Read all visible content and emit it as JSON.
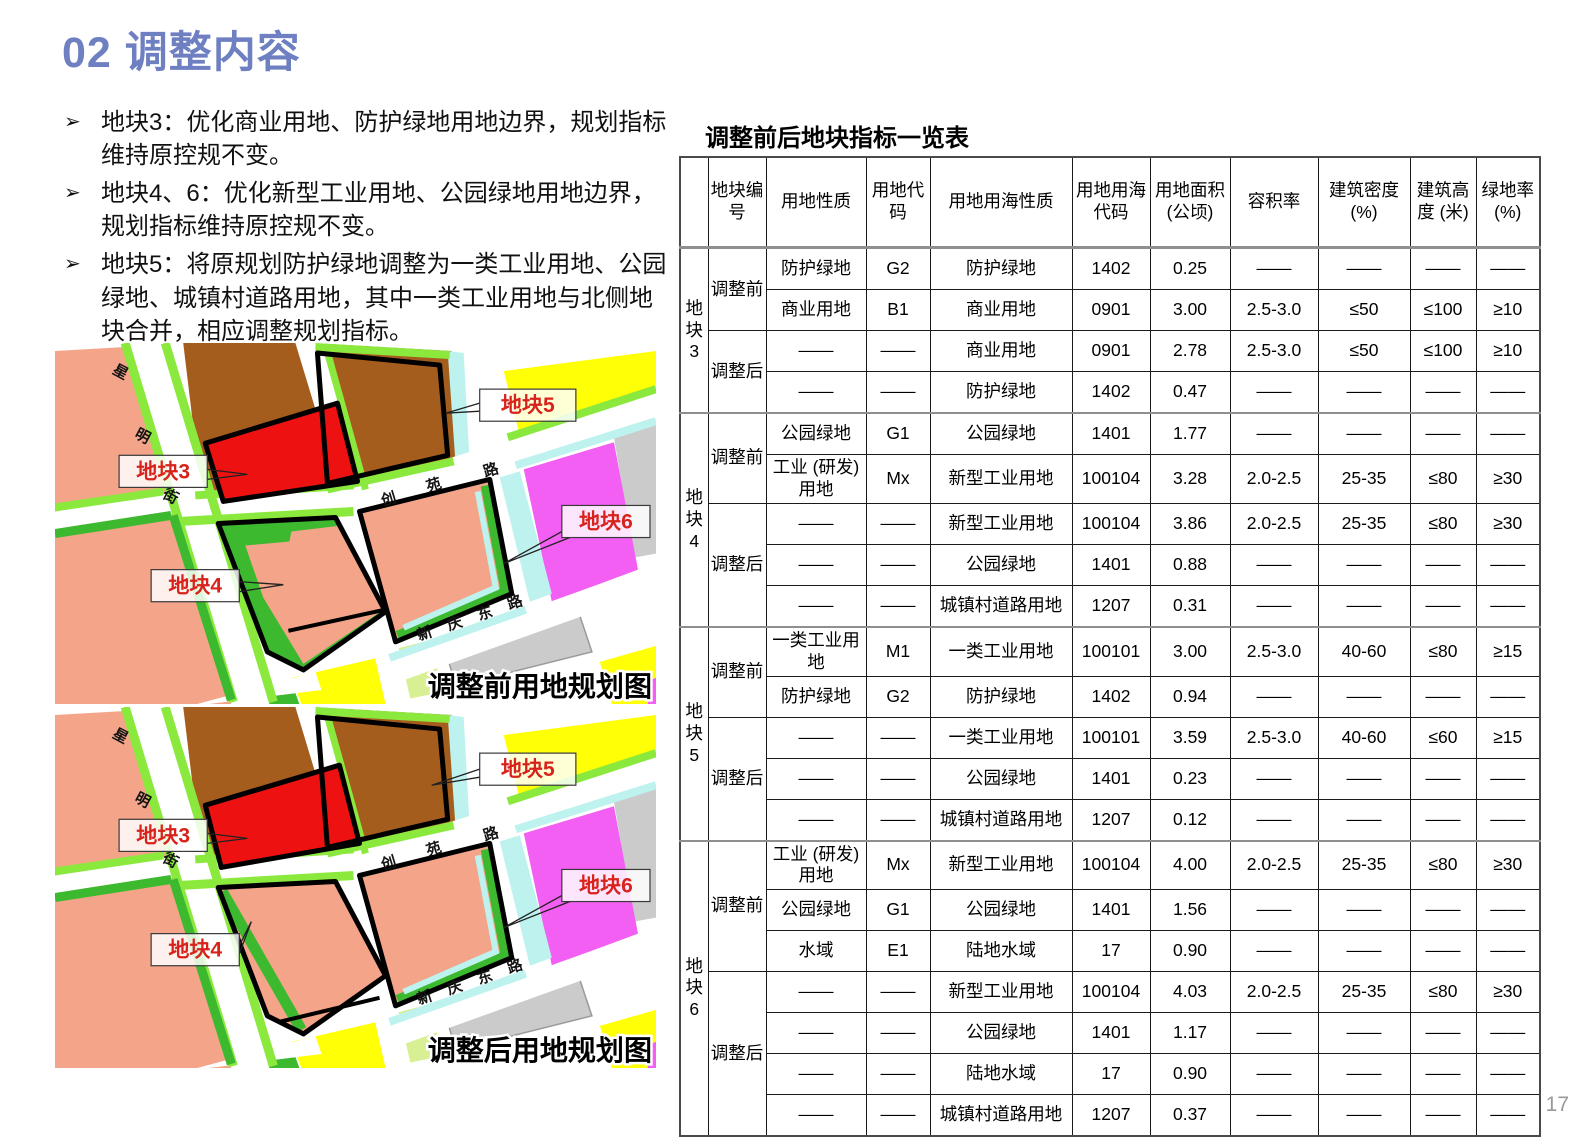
{
  "page": {
    "title": "02 调整内容",
    "number": "17"
  },
  "bullets": [
    {
      "marker": "➢",
      "text": "地块3：优化商业用地、防护绿地用地边界，规划指标维持原控规不变。"
    },
    {
      "marker": "➢",
      "text": "地块4、6：优化新型工业用地、公园绿地用地边界，规划指标维持原控规不变。"
    },
    {
      "marker": "➢",
      "text": "地块5：将原规划防护绿地调整为一类工业用地、公园绿地、城镇村道路用地，其中一类工业用地与北侧地块合并，相应调整规划指标。"
    }
  ],
  "maps": {
    "before": {
      "caption": "调整前用地规划图"
    },
    "after": {
      "caption": "调整后用地规划图"
    },
    "labels": {
      "p3": "地块3",
      "p4": "地块4",
      "p5": "地块5",
      "p6": "地块6"
    },
    "streets": {
      "xingming": [
        "星",
        "明",
        "街"
      ],
      "chuangyuan": [
        "创",
        "苑",
        "路"
      ],
      "xinqingdong": [
        "新",
        "庆",
        "东",
        "路"
      ]
    },
    "legend_colors": {
      "commercial_brown": "#A55D1E",
      "residential_salmon": "#F4A489",
      "highlight_red": "#EE1111",
      "green_light": "#8BE93E",
      "green_mid": "#3CB92E",
      "yellow": "#FFFF05",
      "magenta": "#F25FF2",
      "cyan": "#BDF2EF",
      "pale_yellow_green": "#D8F093",
      "gray": "#CBCBCB",
      "label_red": "#D8231C",
      "title_blue": "#6F80C2"
    }
  },
  "table": {
    "title": "调整前后地块指标一览表",
    "headers": [
      "地块编号",
      "用地性质",
      "用地代码",
      "用地用海性质",
      "用地用海代码",
      "用地面积 (公顷)",
      "容积率",
      "建筑密度 (%)",
      "建筑高度 (米)",
      "绿地率 (%)"
    ],
    "groups": [
      {
        "plot": "地块3",
        "sections": [
          {
            "phase": "调整前",
            "rows": [
              [
                "防护绿地",
                "G2",
                "防护绿地",
                "1402",
                "0.25",
                "——",
                "——",
                "——",
                "——"
              ],
              [
                "商业用地",
                "B1",
                "商业用地",
                "0901",
                "3.00",
                "2.5-3.0",
                "≤50",
                "≤100",
                "≥10"
              ]
            ]
          },
          {
            "phase": "调整后",
            "rows": [
              [
                "——",
                "——",
                "商业用地",
                "0901",
                "2.78",
                "2.5-3.0",
                "≤50",
                "≤100",
                "≥10"
              ],
              [
                "——",
                "——",
                "防护绿地",
                "1402",
                "0.47",
                "——",
                "——",
                "——",
                "——"
              ]
            ]
          }
        ]
      },
      {
        "plot": "地块4",
        "sections": [
          {
            "phase": "调整前",
            "rows": [
              [
                "公园绿地",
                "G1",
                "公园绿地",
                "1401",
                "1.77",
                "——",
                "——",
                "——",
                "——"
              ],
              [
                "工业 (研发) 用地",
                "Mx",
                "新型工业用地",
                "100104",
                "3.28",
                "2.0-2.5",
                "25-35",
                "≤80",
                "≥30"
              ]
            ]
          },
          {
            "phase": "调整后",
            "rows": [
              [
                "——",
                "——",
                "新型工业用地",
                "100104",
                "3.86",
                "2.0-2.5",
                "25-35",
                "≤80",
                "≥30"
              ],
              [
                "——",
                "——",
                "公园绿地",
                "1401",
                "0.88",
                "——",
                "——",
                "——",
                "——"
              ],
              [
                "——",
                "——",
                "城镇村道路用地",
                "1207",
                "0.31",
                "——",
                "——",
                "——",
                "——"
              ]
            ]
          }
        ]
      },
      {
        "plot": "地块5",
        "sections": [
          {
            "phase": "调整前",
            "rows": [
              [
                "一类工业用地",
                "M1",
                "一类工业用地",
                "100101",
                "3.00",
                "2.5-3.0",
                "40-60",
                "≤80",
                "≥15"
              ],
              [
                "防护绿地",
                "G2",
                "防护绿地",
                "1402",
                "0.94",
                "——",
                "——",
                "——",
                "——"
              ]
            ]
          },
          {
            "phase": "调整后",
            "rows": [
              [
                "——",
                "——",
                "一类工业用地",
                "100101",
                "3.59",
                "2.5-3.0",
                "40-60",
                "≤60",
                "≥15"
              ],
              [
                "——",
                "——",
                "公园绿地",
                "1401",
                "0.23",
                "——",
                "——",
                "——",
                "——"
              ],
              [
                "——",
                "——",
                "城镇村道路用地",
                "1207",
                "0.12",
                "——",
                "——",
                "——",
                "——"
              ]
            ]
          }
        ]
      },
      {
        "plot": "地块6",
        "sections": [
          {
            "phase": "调整前",
            "rows": [
              [
                "工业 (研发) 用地",
                "Mx",
                "新型工业用地",
                "100104",
                "4.00",
                "2.0-2.5",
                "25-35",
                "≤80",
                "≥30"
              ],
              [
                "公园绿地",
                "G1",
                "公园绿地",
                "1401",
                "1.56",
                "——",
                "——",
                "——",
                "——"
              ],
              [
                "水域",
                "E1",
                "陆地水域",
                "17",
                "0.90",
                "——",
                "——",
                "——",
                "——"
              ]
            ]
          },
          {
            "phase": "调整后",
            "rows": [
              [
                "——",
                "——",
                "新型工业用地",
                "100104",
                "4.03",
                "2.0-2.5",
                "25-35",
                "≤80",
                "≥30"
              ],
              [
                "——",
                "——",
                "公园绿地",
                "1401",
                "1.17",
                "——",
                "——",
                "——",
                "——"
              ],
              [
                "——",
                "——",
                "陆地水域",
                "17",
                "0.90",
                "——",
                "——",
                "——",
                "——"
              ],
              [
                "——",
                "——",
                "城镇村道路用地",
                "1207",
                "0.37",
                "——",
                "——",
                "——",
                "——"
              ]
            ]
          }
        ]
      }
    ]
  }
}
